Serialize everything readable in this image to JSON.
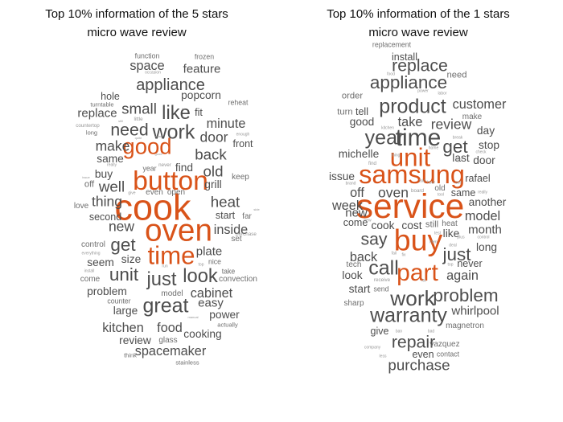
{
  "panels": [
    {
      "title_line1": "Top 10% information of the 5 stars",
      "title_line2": "micro wave review",
      "words": [
        {
          "text": "cook",
          "weight": 36,
          "highlight": true
        },
        {
          "text": "oven",
          "weight": 31,
          "highlight": true
        },
        {
          "text": "button",
          "weight": 27,
          "highlight": true
        },
        {
          "text": "time",
          "weight": 25,
          "highlight": true
        },
        {
          "text": "good",
          "weight": 22,
          "highlight": true
        },
        {
          "text": "work",
          "weight": 20
        },
        {
          "text": "great",
          "weight": 20
        },
        {
          "text": "look",
          "weight": 19
        },
        {
          "text": "just",
          "weight": 19
        },
        {
          "text": "like",
          "weight": 19
        },
        {
          "text": "unit",
          "weight": 18
        },
        {
          "text": "get",
          "weight": 18
        },
        {
          "text": "need",
          "weight": 17
        },
        {
          "text": "appliance",
          "weight": 16
        },
        {
          "text": "small",
          "weight": 15
        },
        {
          "text": "back",
          "weight": 15
        },
        {
          "text": "well",
          "weight": 15
        },
        {
          "text": "old",
          "weight": 15
        },
        {
          "text": "heat",
          "weight": 15
        },
        {
          "text": "new",
          "weight": 14
        },
        {
          "text": "thing",
          "weight": 14
        },
        {
          "text": "make",
          "weight": 14
        },
        {
          "text": "door",
          "weight": 14
        },
        {
          "text": "space",
          "weight": 13
        },
        {
          "text": "cabinet",
          "weight": 13
        },
        {
          "text": "kitchen",
          "weight": 13
        },
        {
          "text": "food",
          "weight": 13
        },
        {
          "text": "inside",
          "weight": 13
        },
        {
          "text": "minute",
          "weight": 13
        },
        {
          "text": "spacemaker",
          "weight": 13
        },
        {
          "text": "feature",
          "weight": 12
        },
        {
          "text": "plate",
          "weight": 12
        },
        {
          "text": "easy",
          "weight": 12
        },
        {
          "text": "replace",
          "weight": 12
        },
        {
          "text": "popcorn",
          "weight": 11
        },
        {
          "text": "power",
          "weight": 11
        },
        {
          "text": "find",
          "weight": 11
        },
        {
          "text": "cooking",
          "weight": 11
        },
        {
          "text": "review",
          "weight": 11
        },
        {
          "text": "grill",
          "weight": 11
        },
        {
          "text": "problem",
          "weight": 11
        },
        {
          "text": "size",
          "weight": 11
        },
        {
          "text": "large",
          "weight": 11
        },
        {
          "text": "buy",
          "weight": 11
        },
        {
          "text": "same",
          "weight": 11
        },
        {
          "text": "seem",
          "weight": 11
        },
        {
          "text": "second",
          "weight": 10
        },
        {
          "text": "fit",
          "weight": 10
        },
        {
          "text": "start",
          "weight": 10
        },
        {
          "text": "front",
          "weight": 10
        },
        {
          "text": "hole",
          "weight": 10
        },
        {
          "text": "off",
          "weight": 9
        },
        {
          "text": "even",
          "weight": 8
        },
        {
          "text": "open",
          "weight": 8
        },
        {
          "text": "set",
          "weight": 8
        },
        {
          "text": "far",
          "weight": 8
        },
        {
          "text": "keep",
          "weight": 8
        },
        {
          "text": "glass",
          "weight": 8
        },
        {
          "text": "love",
          "weight": 8
        },
        {
          "text": "come",
          "weight": 8
        },
        {
          "text": "control",
          "weight": 8
        },
        {
          "text": "convection",
          "weight": 8
        },
        {
          "text": "model",
          "weight": 8
        },
        {
          "text": "take",
          "weight": 7
        },
        {
          "text": "nice",
          "weight": 7
        },
        {
          "text": "counter",
          "weight": 7
        },
        {
          "text": "function",
          "weight": 7
        },
        {
          "text": "frozen",
          "weight": 7
        },
        {
          "text": "reheat",
          "weight": 7
        },
        {
          "text": "year",
          "weight": 7
        },
        {
          "text": "long",
          "weight": 6
        },
        {
          "text": "actually",
          "weight": 6
        },
        {
          "text": "stainless",
          "weight": 6
        },
        {
          "text": "think",
          "weight": 6
        },
        {
          "text": "turntable",
          "weight": 6
        },
        {
          "text": "countertop",
          "weight": 5
        },
        {
          "text": "purchase",
          "weight": 5
        },
        {
          "text": "little",
          "weight": 5
        },
        {
          "text": "never",
          "weight": 5
        },
        {
          "text": "occasion",
          "weight": 4
        },
        {
          "text": "enough",
          "weight": 4
        },
        {
          "text": "really",
          "weight": 4
        },
        {
          "text": "give",
          "weight": 4
        },
        {
          "text": "everything",
          "weight": 4
        },
        {
          "text": "install",
          "weight": 4
        },
        {
          "text": "run",
          "weight": 4
        },
        {
          "text": "top",
          "weight": 4
        },
        {
          "text": "manual",
          "weight": 3
        },
        {
          "text": "issue",
          "weight": 3
        },
        {
          "text": "side",
          "weight": 3
        },
        {
          "text": "quite",
          "weight": 3
        },
        {
          "text": "still",
          "weight": 3
        },
        {
          "text": "good",
          "weight": 3
        },
        {
          "text": "store",
          "weight": 3
        },
        {
          "text": "lot",
          "weight": 3
        }
      ]
    },
    {
      "title_line1": "Top 10% information of the 1 stars",
      "title_line2": "micro wave review",
      "words": [
        {
          "text": "service",
          "weight": 34,
          "highlight": true
        },
        {
          "text": "buy",
          "weight": 30,
          "highlight": true
        },
        {
          "text": "samsung",
          "weight": 26,
          "highlight": true
        },
        {
          "text": "unit",
          "weight": 25,
          "highlight": true
        },
        {
          "text": "part",
          "weight": 24,
          "highlight": true
        },
        {
          "text": "time",
          "weight": 24
        },
        {
          "text": "work",
          "weight": 21
        },
        {
          "text": "year",
          "weight": 20
        },
        {
          "text": "call",
          "weight": 20
        },
        {
          "text": "product",
          "weight": 20
        },
        {
          "text": "warranty",
          "weight": 20
        },
        {
          "text": "appliance",
          "weight": 18
        },
        {
          "text": "just",
          "weight": 18
        },
        {
          "text": "problem",
          "weight": 18
        },
        {
          "text": "get",
          "weight": 18
        },
        {
          "text": "replace",
          "weight": 17
        },
        {
          "text": "say",
          "weight": 17
        },
        {
          "text": "repair",
          "weight": 17
        },
        {
          "text": "review",
          "weight": 14
        },
        {
          "text": "purchase",
          "weight": 15
        },
        {
          "text": "customer",
          "weight": 13
        },
        {
          "text": "take",
          "weight": 13
        },
        {
          "text": "oven",
          "weight": 14
        },
        {
          "text": "off",
          "weight": 13
        },
        {
          "text": "week",
          "weight": 13
        },
        {
          "text": "back",
          "weight": 13
        },
        {
          "text": "model",
          "weight": 13
        },
        {
          "text": "again",
          "weight": 13
        },
        {
          "text": "new",
          "weight": 12
        },
        {
          "text": "month",
          "weight": 12
        },
        {
          "text": "whirlpool",
          "weight": 12
        },
        {
          "text": "door",
          "weight": 11
        },
        {
          "text": "last",
          "weight": 11
        },
        {
          "text": "michelle",
          "weight": 11
        },
        {
          "text": "issue",
          "weight": 11
        },
        {
          "text": "cook",
          "weight": 11
        },
        {
          "text": "cost",
          "weight": 11
        },
        {
          "text": "like",
          "weight": 11
        },
        {
          "text": "another",
          "weight": 11
        },
        {
          "text": "good",
          "weight": 11
        },
        {
          "text": "stop",
          "weight": 11
        },
        {
          "text": "day",
          "weight": 11
        },
        {
          "text": "look",
          "weight": 11
        },
        {
          "text": "start",
          "weight": 11
        },
        {
          "text": "long",
          "weight": 11
        },
        {
          "text": "same",
          "weight": 10
        },
        {
          "text": "tell",
          "weight": 10
        },
        {
          "text": "install",
          "weight": 10
        },
        {
          "text": "rafael",
          "weight": 10
        },
        {
          "text": "never",
          "weight": 10
        },
        {
          "text": "give",
          "weight": 10
        },
        {
          "text": "even",
          "weight": 10
        },
        {
          "text": "come",
          "weight": 10
        },
        {
          "text": "still",
          "weight": 9
        },
        {
          "text": "turn",
          "weight": 9
        },
        {
          "text": "order",
          "weight": 9
        },
        {
          "text": "need",
          "weight": 9
        },
        {
          "text": "sharp",
          "weight": 8
        },
        {
          "text": "vazquez",
          "weight": 8
        },
        {
          "text": "make",
          "weight": 8
        },
        {
          "text": "magnetron",
          "weight": 8
        },
        {
          "text": "heat",
          "weight": 8
        },
        {
          "text": "old",
          "weight": 8
        },
        {
          "text": "tech",
          "weight": 8
        },
        {
          "text": "send",
          "weight": 7
        },
        {
          "text": "contact",
          "weight": 7
        },
        {
          "text": "replacement",
          "weight": 7
        },
        {
          "text": "receive",
          "weight": 5
        },
        {
          "text": "find",
          "weight": 5
        },
        {
          "text": "board",
          "weight": 5
        },
        {
          "text": "fail",
          "weight": 4
        },
        {
          "text": "fix",
          "weight": 4
        },
        {
          "text": "thing",
          "weight": 4
        },
        {
          "text": "check",
          "weight": 4
        },
        {
          "text": "control",
          "weight": 4
        },
        {
          "text": "kitchen",
          "weight": 4
        },
        {
          "text": "brand",
          "weight": 4
        },
        {
          "text": "home",
          "weight": 4
        },
        {
          "text": "break",
          "weight": 4
        },
        {
          "text": "power",
          "weight": 4
        },
        {
          "text": "labor",
          "weight": 4
        },
        {
          "text": "light",
          "weight": 4
        },
        {
          "text": "company",
          "weight": 4
        },
        {
          "text": "less",
          "weight": 4
        },
        {
          "text": "lot",
          "weight": 4
        },
        {
          "text": "ban",
          "weight": 4
        },
        {
          "text": "bad",
          "weight": 4
        },
        {
          "text": "top",
          "weight": 4
        },
        {
          "text": "really",
          "weight": 4
        },
        {
          "text": "tool",
          "weight": 4
        },
        {
          "text": "food",
          "weight": 4
        },
        {
          "text": "told",
          "weight": 4
        },
        {
          "text": "hour",
          "weight": 4
        },
        {
          "text": "test",
          "weight": 4
        },
        {
          "text": "deal",
          "weight": 4
        },
        {
          "text": "new",
          "weight": 4
        },
        {
          "text": "item",
          "weight": 4
        },
        {
          "text": "plus",
          "weight": 4
        },
        {
          "text": "sell",
          "weight": 4
        }
      ]
    }
  ],
  "colors": {
    "highlight": "#d95319",
    "normal": "#4d4d4d"
  }
}
